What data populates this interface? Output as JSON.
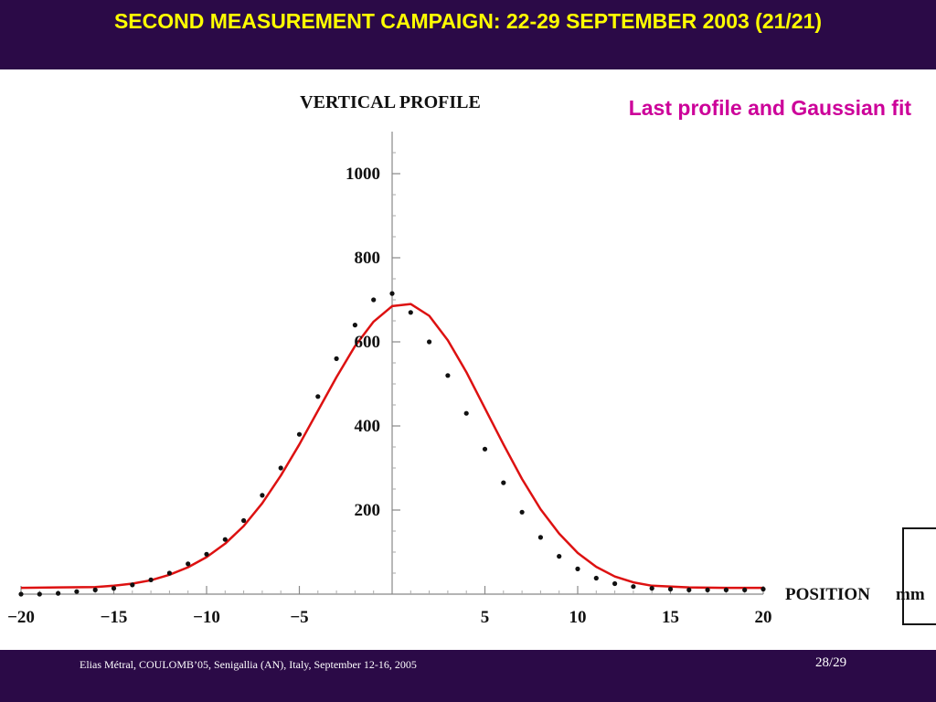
{
  "slide": {
    "title": "SECOND MEASUREMENT CAMPAIGN: 22-29 SEPTEMBER 2003 (21/21)",
    "footer_text": "Elias Métral, COULOMB’05, Senigallia (AN), Italy, September 12-16, 2005",
    "page_number": "28/29"
  },
  "colors": {
    "band": "#2b0a47",
    "title": "#ffff00",
    "annotation": "#cc0099",
    "fit_line": "#dd1111",
    "points": "#111111"
  },
  "chart_data": {
    "type": "scatter",
    "title": "VERTICAL  PROFILE",
    "annotation": "Last profile and Gaussian fit",
    "xlabel": "POSITION",
    "xunit": "mm",
    "ylabel": "",
    "xlim": [
      -20,
      20
    ],
    "ylim": [
      0,
      1100
    ],
    "x_ticks": [
      -20,
      -15,
      -10,
      -5,
      5,
      10,
      15,
      20
    ],
    "x_tick_labels": [
      "−20",
      "−15",
      "−10",
      "−5",
      "5",
      "10",
      "15",
      "20"
    ],
    "y_ticks": [
      200,
      400,
      600,
      800,
      1000
    ],
    "y_tick_labels": [
      "200",
      "400",
      "600",
      "800",
      "1000"
    ],
    "series": [
      {
        "kind": "scatter",
        "x": [
          -20,
          -19,
          -18,
          -17,
          -16,
          -15,
          -14,
          -13,
          -12,
          -11,
          -10,
          -9,
          -8,
          -7,
          -6,
          -5,
          -4,
          -3,
          -2,
          -1,
          0,
          1,
          2,
          3,
          4,
          5,
          6,
          7,
          8,
          9,
          10,
          11,
          12,
          13,
          14,
          15,
          16,
          17,
          18,
          19,
          20
        ],
        "values": [
          0,
          0,
          2,
          6,
          10,
          14,
          22,
          34,
          50,
          72,
          95,
          130,
          175,
          235,
          300,
          380,
          470,
          560,
          640,
          700,
          715,
          670,
          600,
          520,
          430,
          345,
          265,
          195,
          135,
          90,
          60,
          38,
          25,
          18,
          14,
          12,
          10,
          10,
          10,
          10,
          12
        ]
      },
      {
        "kind": "line",
        "x": [
          -20,
          -18,
          -16,
          -15,
          -14,
          -13,
          -12,
          -11,
          -10,
          -9,
          -8,
          -7,
          -6,
          -5,
          -4,
          -3,
          -2,
          -1,
          0,
          1,
          2,
          3,
          4,
          5,
          6,
          7,
          8,
          9,
          10,
          11,
          12,
          13,
          14,
          16,
          18,
          20
        ],
        "values": [
          15,
          16,
          17,
          20,
          25,
          33,
          46,
          64,
          88,
          120,
          162,
          216,
          282,
          356,
          436,
          516,
          590,
          648,
          685,
          690,
          662,
          604,
          528,
          442,
          356,
          274,
          202,
          144,
          98,
          65,
          42,
          28,
          20,
          16,
          15,
          15
        ]
      }
    ],
    "grid": false
  }
}
